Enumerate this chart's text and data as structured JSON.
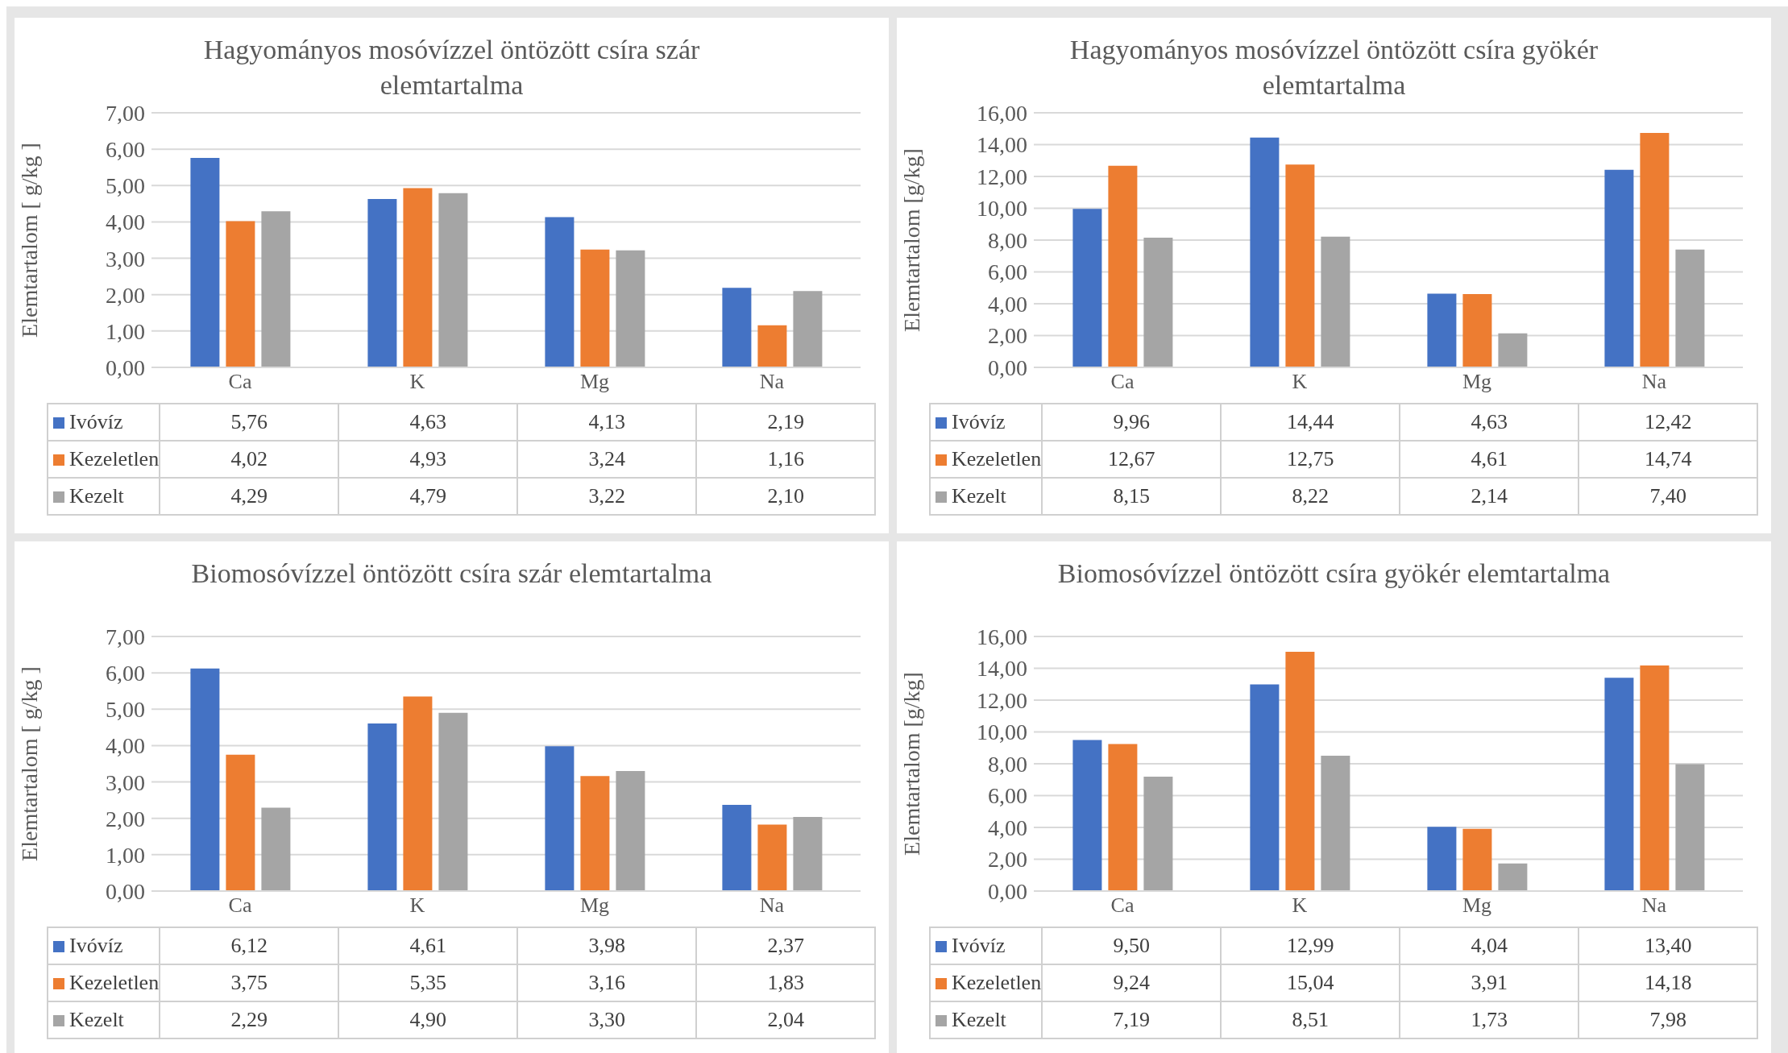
{
  "chart_data": [
    {
      "type": "bar",
      "title": "Hagyományos mosóvízzel öntözött csíra szár elemtartalma",
      "ylabel": "Elemtartalom [ g/kg ]",
      "categories": [
        "Ca",
        "K",
        "Mg",
        "Na"
      ],
      "ylim": [
        0,
        7
      ],
      "yticks": [
        {
          "value": 0,
          "label": "0,00"
        },
        {
          "value": 1,
          "label": "1,00"
        },
        {
          "value": 2,
          "label": "2,00"
        },
        {
          "value": 3,
          "label": "3,00"
        },
        {
          "value": 4,
          "label": "4,00"
        },
        {
          "value": 5,
          "label": "5,00"
        },
        {
          "value": 6,
          "label": "6,00"
        },
        {
          "value": 7,
          "label": "7,00"
        }
      ],
      "grid": "y",
      "legend": "bottom",
      "series": [
        {
          "name": "Ivóvíz",
          "color": "#4472c4",
          "values": [
            5.76,
            4.63,
            4.13,
            2.19
          ],
          "value_labels": [
            "5,76",
            "4,63",
            "4,13",
            "2,19"
          ]
        },
        {
          "name": "Kezeletlen",
          "color": "#ed7d31",
          "values": [
            4.02,
            4.93,
            3.24,
            1.16
          ],
          "value_labels": [
            "4,02",
            "4,93",
            "3,24",
            "1,16"
          ]
        },
        {
          "name": "Kezelt",
          "color": "#a5a5a5",
          "values": [
            4.29,
            4.79,
            3.22,
            2.1
          ],
          "value_labels": [
            "4,29",
            "4,79",
            "3,22",
            "2,10"
          ]
        }
      ]
    },
    {
      "type": "bar",
      "title": "Hagyományos mosóvízzel öntözött csíra gyökér elemtartalma",
      "ylabel": "Elemtartalom [g/kg]",
      "categories": [
        "Ca",
        "K",
        "Mg",
        "Na"
      ],
      "ylim": [
        0,
        16
      ],
      "yticks": [
        {
          "value": 0,
          "label": "0,00"
        },
        {
          "value": 2,
          "label": "2,00"
        },
        {
          "value": 4,
          "label": "4,00"
        },
        {
          "value": 6,
          "label": "6,00"
        },
        {
          "value": 8,
          "label": "8,00"
        },
        {
          "value": 10,
          "label": "10,00"
        },
        {
          "value": 12,
          "label": "12,00"
        },
        {
          "value": 14,
          "label": "14,00"
        },
        {
          "value": 16,
          "label": "16,00"
        }
      ],
      "grid": "y",
      "legend": "bottom",
      "series": [
        {
          "name": "Ivóvíz",
          "color": "#4472c4",
          "values": [
            9.96,
            14.44,
            4.63,
            12.42
          ],
          "value_labels": [
            "9,96",
            "14,44",
            "4,63",
            "12,42"
          ]
        },
        {
          "name": "Kezeletlen",
          "color": "#ed7d31",
          "values": [
            12.67,
            12.75,
            4.61,
            14.74
          ],
          "value_labels": [
            "12,67",
            "12,75",
            "4,61",
            "14,74"
          ]
        },
        {
          "name": "Kezelt",
          "color": "#a5a5a5",
          "values": [
            8.15,
            8.22,
            2.14,
            7.4
          ],
          "value_labels": [
            "8,15",
            "8,22",
            "2,14",
            "7,40"
          ]
        }
      ]
    },
    {
      "type": "bar",
      "title": "Biomosóvízzel öntözött csíra szár elemtartalma",
      "ylabel": "Elemtartalom [ g/kg ]",
      "categories": [
        "Ca",
        "K",
        "Mg",
        "Na"
      ],
      "ylim": [
        0,
        7
      ],
      "yticks": [
        {
          "value": 0,
          "label": "0,00"
        },
        {
          "value": 1,
          "label": "1,00"
        },
        {
          "value": 2,
          "label": "2,00"
        },
        {
          "value": 3,
          "label": "3,00"
        },
        {
          "value": 4,
          "label": "4,00"
        },
        {
          "value": 5,
          "label": "5,00"
        },
        {
          "value": 6,
          "label": "6,00"
        },
        {
          "value": 7,
          "label": "7,00"
        }
      ],
      "grid": "y",
      "legend": "bottom",
      "series": [
        {
          "name": "Ivóvíz",
          "color": "#4472c4",
          "values": [
            6.12,
            4.61,
            3.98,
            2.37
          ],
          "value_labels": [
            "6,12",
            "4,61",
            "3,98",
            "2,37"
          ]
        },
        {
          "name": "Kezeletlen",
          "color": "#ed7d31",
          "values": [
            3.75,
            5.35,
            3.16,
            1.83
          ],
          "value_labels": [
            "3,75",
            "5,35",
            "3,16",
            "1,83"
          ]
        },
        {
          "name": "Kezelt",
          "color": "#a5a5a5",
          "values": [
            2.29,
            4.9,
            3.3,
            2.04
          ],
          "value_labels": [
            "2,29",
            "4,90",
            "3,30",
            "2,04"
          ]
        }
      ]
    },
    {
      "type": "bar",
      "title": "Biomosóvízzel öntözött csíra gyökér elemtartalma",
      "ylabel": "Elemtartalom [g/kg]",
      "categories": [
        "Ca",
        "K",
        "Mg",
        "Na"
      ],
      "ylim": [
        0,
        16
      ],
      "yticks": [
        {
          "value": 0,
          "label": "0,00"
        },
        {
          "value": 2,
          "label": "2,00"
        },
        {
          "value": 4,
          "label": "4,00"
        },
        {
          "value": 6,
          "label": "6,00"
        },
        {
          "value": 8,
          "label": "8,00"
        },
        {
          "value": 10,
          "label": "10,00"
        },
        {
          "value": 12,
          "label": "12,00"
        },
        {
          "value": 14,
          "label": "14,00"
        },
        {
          "value": 16,
          "label": "16,00"
        }
      ],
      "grid": "y",
      "legend": "bottom",
      "series": [
        {
          "name": "Ivóvíz",
          "color": "#4472c4",
          "values": [
            9.5,
            12.99,
            4.04,
            13.4
          ],
          "value_labels": [
            "9,50",
            "12,99",
            "4,04",
            "13,40"
          ]
        },
        {
          "name": "Kezeletlen",
          "color": "#ed7d31",
          "values": [
            9.24,
            15.04,
            3.91,
            14.18
          ],
          "value_labels": [
            "9,24",
            "15,04",
            "3,91",
            "14,18"
          ]
        },
        {
          "name": "Kezelt",
          "color": "#a5a5a5",
          "values": [
            7.19,
            8.51,
            1.73,
            7.98
          ],
          "value_labels": [
            "7,19",
            "8,51",
            "1,73",
            "7,98"
          ]
        }
      ]
    }
  ]
}
